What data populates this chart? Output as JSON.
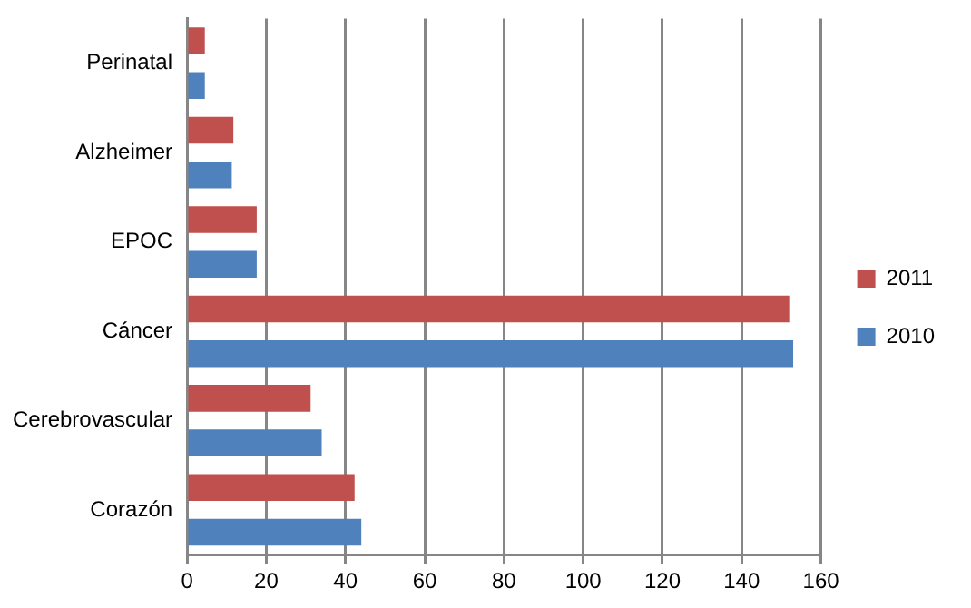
{
  "chart_data": {
    "type": "bar",
    "orientation": "horizontal",
    "categories": [
      "Perinatal",
      "Alzheimer",
      "EPOC",
      "Cáncer",
      "Cerebrovascular",
      "Corazón"
    ],
    "series": [
      {
        "name": "2011",
        "color": "#c0504d",
        "values": [
          4.5,
          11.7,
          17.6,
          152,
          31.2,
          42.3
        ]
      },
      {
        "name": "2010",
        "color": "#4f81bd",
        "values": [
          4.5,
          11.3,
          17.6,
          153,
          34,
          44
        ]
      }
    ],
    "xlim": [
      0,
      160
    ],
    "xticks": [
      0,
      20,
      40,
      60,
      80,
      100,
      120,
      140,
      160
    ],
    "grid": "x",
    "legend": "right"
  }
}
